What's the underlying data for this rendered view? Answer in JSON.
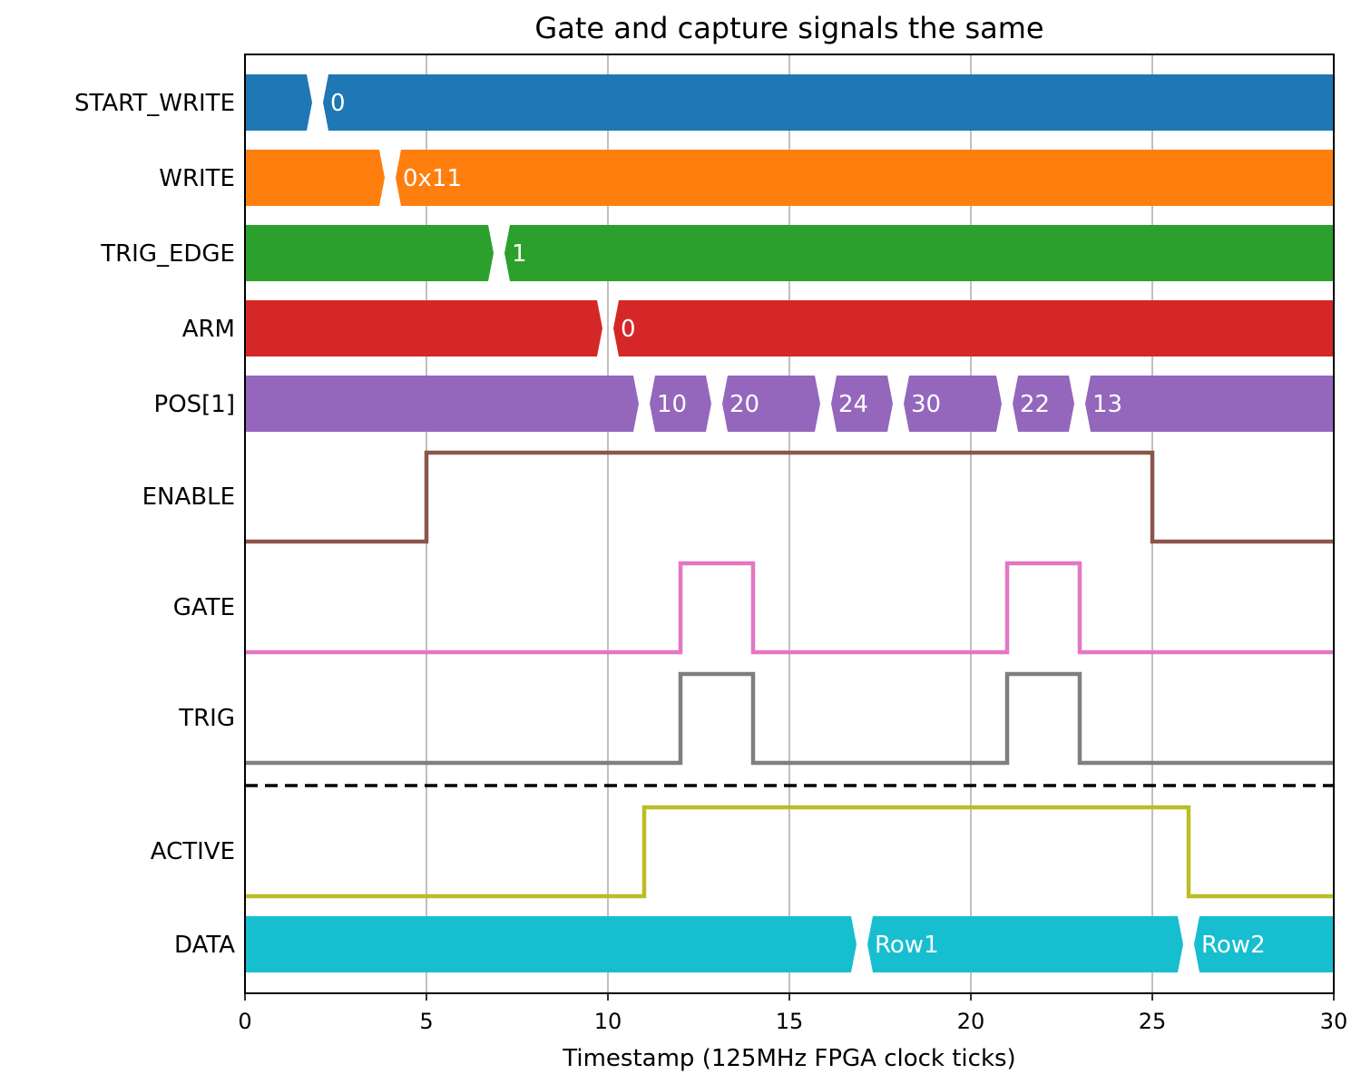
{
  "chart_data": {
    "type": "timing",
    "title": "Gate and capture signals the same",
    "xlabel": "Timestamp (125MHz FPGA clock ticks)",
    "xlim": [
      0,
      30
    ],
    "xticks": [
      "0",
      "5",
      "10",
      "15",
      "20",
      "25",
      "30"
    ],
    "xtick_values": [
      0,
      5,
      10,
      15,
      20,
      25,
      30
    ],
    "grid": true,
    "signals": [
      {
        "name": "START_WRITE",
        "kind": "bus",
        "color": "#1f77b4",
        "segments": [
          {
            "start": 0,
            "end": 2,
            "label": ""
          },
          {
            "start": 2,
            "end": 30,
            "label": "0"
          }
        ]
      },
      {
        "name": "WRITE",
        "kind": "bus",
        "color": "#ff7f0e",
        "segments": [
          {
            "start": 0,
            "end": 4,
            "label": ""
          },
          {
            "start": 4,
            "end": 30,
            "label": "0x11"
          }
        ]
      },
      {
        "name": "TRIG_EDGE",
        "kind": "bus",
        "color": "#2ca02c",
        "segments": [
          {
            "start": 0,
            "end": 7,
            "label": ""
          },
          {
            "start": 7,
            "end": 30,
            "label": "1"
          }
        ]
      },
      {
        "name": "ARM",
        "kind": "bus",
        "color": "#d62728",
        "segments": [
          {
            "start": 0,
            "end": 10,
            "label": ""
          },
          {
            "start": 10,
            "end": 30,
            "label": "0"
          }
        ]
      },
      {
        "name": "POS[1]",
        "kind": "bus",
        "color": "#9467bd",
        "segments": [
          {
            "start": 0,
            "end": 11,
            "label": ""
          },
          {
            "start": 11,
            "end": 13,
            "label": "10"
          },
          {
            "start": 13,
            "end": 16,
            "label": "20"
          },
          {
            "start": 16,
            "end": 18,
            "label": "24"
          },
          {
            "start": 18,
            "end": 21,
            "label": "30"
          },
          {
            "start": 21,
            "end": 23,
            "label": "22"
          },
          {
            "start": 23,
            "end": 30,
            "label": "13"
          }
        ]
      },
      {
        "name": "ENABLE",
        "kind": "bit",
        "color": "#8c564b",
        "steps": [
          [
            0,
            0
          ],
          [
            5,
            1
          ],
          [
            25,
            0
          ],
          [
            30,
            0
          ]
        ]
      },
      {
        "name": "GATE",
        "kind": "bit",
        "color": "#e377c2",
        "steps": [
          [
            0,
            0
          ],
          [
            12,
            1
          ],
          [
            14,
            0
          ],
          [
            21,
            1
          ],
          [
            23,
            0
          ],
          [
            30,
            0
          ]
        ]
      },
      {
        "name": "TRIG",
        "kind": "bit",
        "color": "#7f7f7f",
        "steps": [
          [
            0,
            0
          ],
          [
            12,
            1
          ],
          [
            14,
            0
          ],
          [
            21,
            1
          ],
          [
            23,
            0
          ],
          [
            30,
            0
          ]
        ]
      },
      {
        "name": "ACTIVE",
        "kind": "bit",
        "color": "#bcbd22",
        "steps": [
          [
            0,
            0
          ],
          [
            11,
            1
          ],
          [
            26,
            0
          ],
          [
            30,
            0
          ]
        ]
      },
      {
        "name": "DATA",
        "kind": "bus",
        "color": "#17becf",
        "segments": [
          {
            "start": 0,
            "end": 17,
            "label": ""
          },
          {
            "start": 17,
            "end": 26,
            "label": "Row1"
          },
          {
            "start": 26,
            "end": 30,
            "label": "Row2"
          }
        ]
      }
    ],
    "separator_after": "TRIG"
  }
}
